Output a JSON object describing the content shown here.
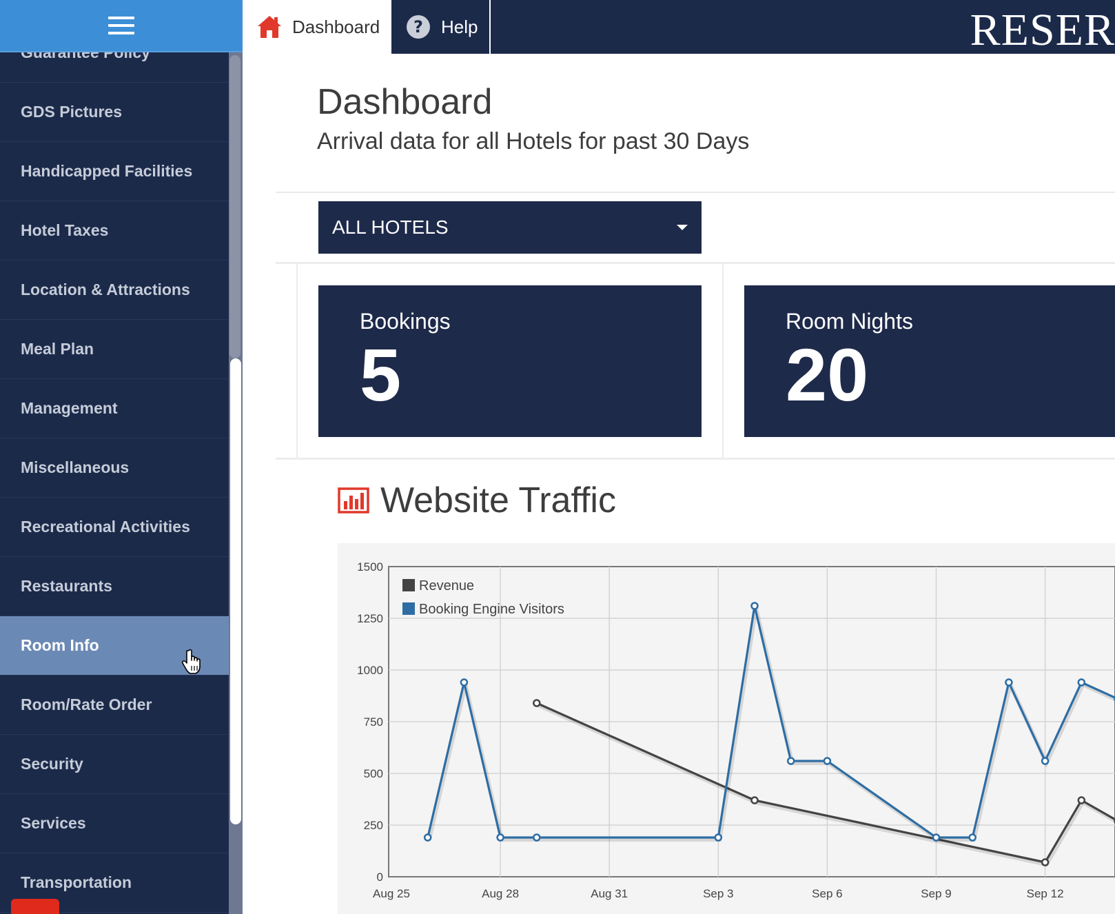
{
  "sidebar": {
    "items": [
      {
        "label": "Guarantee Policy"
      },
      {
        "label": "GDS Pictures"
      },
      {
        "label": "Handicapped Facilities"
      },
      {
        "label": "Hotel Taxes"
      },
      {
        "label": "Location & Attractions"
      },
      {
        "label": "Meal Plan"
      },
      {
        "label": "Management"
      },
      {
        "label": "Miscellaneous"
      },
      {
        "label": "Recreational Activities"
      },
      {
        "label": "Restaurants"
      },
      {
        "label": "Room Info",
        "active": true
      },
      {
        "label": "Room/Rate Order"
      },
      {
        "label": "Security"
      },
      {
        "label": "Services"
      },
      {
        "label": "Transportation"
      }
    ]
  },
  "topbar": {
    "tabs": [
      {
        "label": "Dashboard",
        "icon": "home-icon"
      },
      {
        "label": "Help",
        "icon": "help-icon"
      }
    ],
    "brand": "RESER"
  },
  "page": {
    "title": "Dashboard",
    "subtitle": "Arrival data for all Hotels for past 30 Days",
    "hotel_select": "ALL HOTELS"
  },
  "stats": {
    "bookings_label": "Bookings",
    "bookings_value": "5",
    "nights_label": "Room Nights",
    "nights_value": "20"
  },
  "traffic": {
    "title": "Website Traffic"
  },
  "colors": {
    "navy": "#1e2a4a",
    "sidebar_head": "#3c8fd6",
    "active_item": "#6b89b5",
    "revenue": "#444444",
    "visitors": "#2e6da4",
    "accent_red": "#e0392b"
  },
  "chart_data": {
    "type": "line",
    "x": [
      "Aug 25",
      "Aug 26",
      "Aug 27",
      "Aug 28",
      "Aug 29",
      "Aug 30",
      "Aug 31",
      "Sep 1",
      "Sep 2",
      "Sep 3",
      "Sep 4",
      "Sep 5",
      "Sep 6",
      "Sep 7",
      "Sep 8",
      "Sep 9",
      "Sep 10",
      "Sep 11",
      "Sep 12",
      "Sep 13",
      "Sep 14"
    ],
    "x_ticks": [
      "Aug 25",
      "Aug 28",
      "Aug 31",
      "Sep 3",
      "Sep 6",
      "Sep 9",
      "Sep 12"
    ],
    "ylim": [
      0,
      1500
    ],
    "y_ticks": [
      "0",
      "250",
      "500",
      "750",
      "1000",
      "1250",
      "1500"
    ],
    "grid": true,
    "legend_position": "top-left",
    "series": [
      {
        "name": "Revenue",
        "color": "#444444",
        "values": [
          null,
          null,
          null,
          null,
          840,
          null,
          null,
          null,
          null,
          null,
          370,
          null,
          null,
          null,
          null,
          null,
          null,
          null,
          70,
          370,
          270
        ]
      },
      {
        "name": "Booking Engine Visitors",
        "color": "#2e6da4",
        "values": [
          null,
          190,
          940,
          190,
          190,
          null,
          null,
          null,
          null,
          190,
          1310,
          560,
          560,
          null,
          null,
          190,
          190,
          940,
          560,
          940,
          860
        ]
      }
    ]
  }
}
